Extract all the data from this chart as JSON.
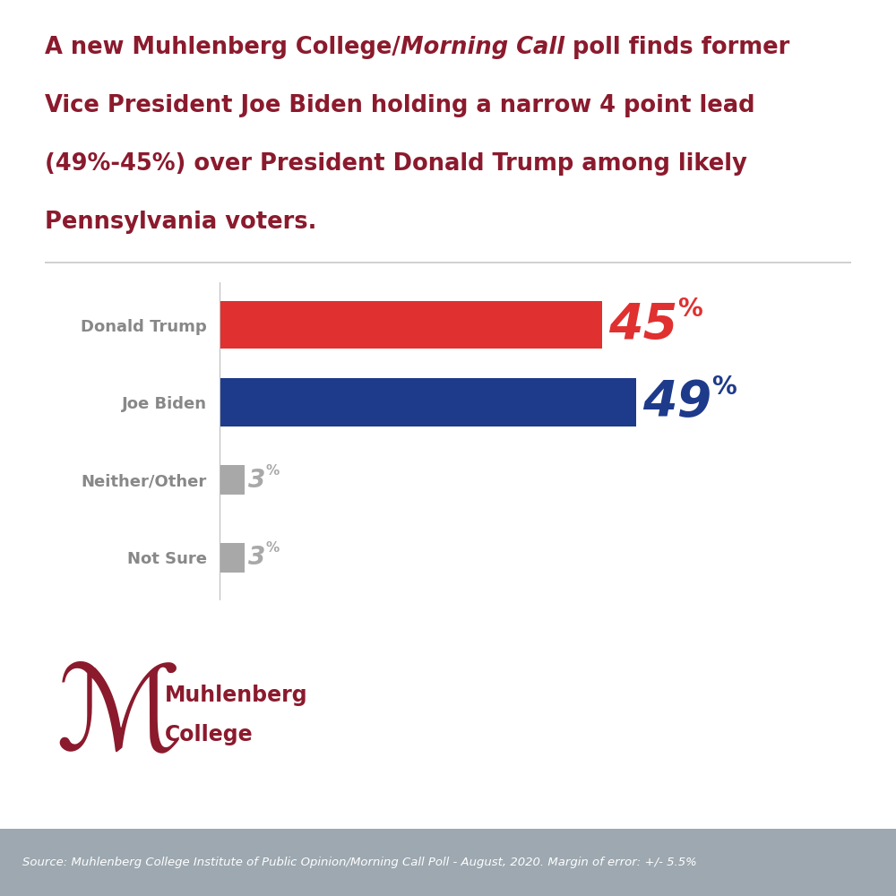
{
  "title_line1_normal": "A new Muhlenberg College/",
  "title_line1_italic": "Morning Call",
  "title_line1_rest": " poll finds former",
  "title_line2": "Vice President Joe Biden holding a narrow 4 point lead",
  "title_line3": "(49%-45%) over President Donald Trump among likely",
  "title_line4": "Pennsylvania voters.",
  "title_color": "#8B1A2D",
  "categories": [
    "Donald Trump",
    "Joe Biden",
    "Neither/Other",
    "Not Sure"
  ],
  "values": [
    45,
    49,
    3,
    3
  ],
  "bar_colors": [
    "#E03030",
    "#1E3A8A",
    "#A8A8A8",
    "#A8A8A8"
  ],
  "label_colors": [
    "#E03030",
    "#1E3A8A",
    "#A8A8A8",
    "#A8A8A8"
  ],
  "background_color": "#FFFFFF",
  "source_text": "Source: Muhlenberg College Institute of Public Opinion/Morning Call Poll - August, 2020. Margin of error: +/- 5.5%",
  "source_bg": "#9DA8B0",
  "source_text_color": "#FFFFFF",
  "logo_color": "#8B1A2D",
  "separator_color": "#C8C8C8",
  "max_val": 58,
  "title_fontsize": 18.5,
  "category_fontsize": 13,
  "large_label_fontsize": 40,
  "small_label_fontsize": 20
}
